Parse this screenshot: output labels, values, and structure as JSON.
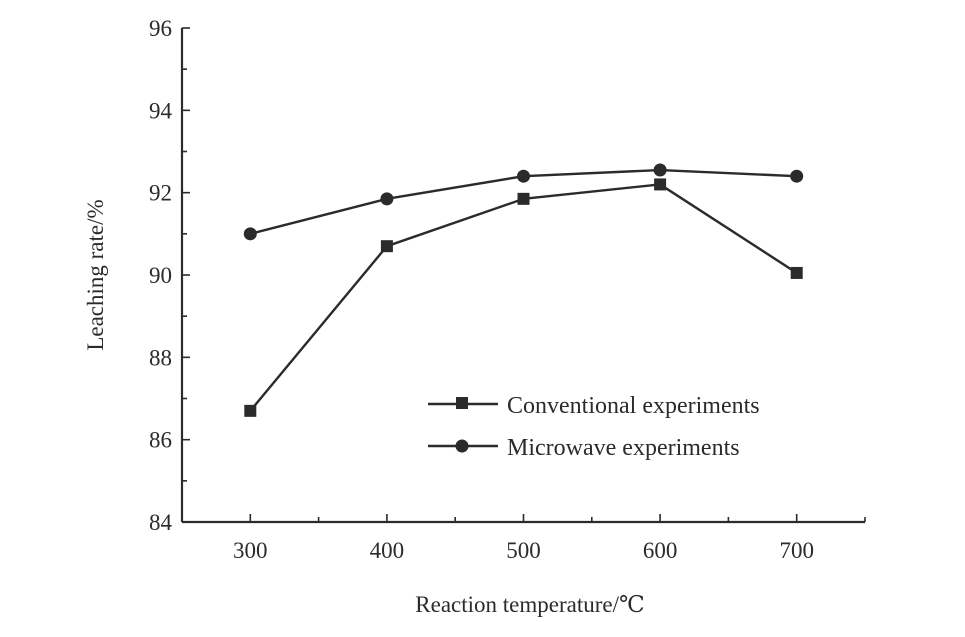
{
  "chart_data": {
    "type": "line",
    "xlabel": "Reaction temperature/℃",
    "ylabel": "Leaching rate/%",
    "xlim": [
      250,
      750
    ],
    "ylim": [
      84,
      96
    ],
    "x_ticks": [
      300,
      400,
      500,
      600,
      700
    ],
    "y_ticks": [
      84,
      86,
      88,
      90,
      92,
      94,
      96
    ],
    "x": [
      300,
      400,
      500,
      600,
      700
    ],
    "series": [
      {
        "name": "Conventional experiments",
        "marker": "square",
        "color": "#2b2b2b",
        "values": [
          86.7,
          90.7,
          91.85,
          92.2,
          90.05
        ]
      },
      {
        "name": "Microwave experiments",
        "marker": "circle",
        "color": "#2b2b2b",
        "values": [
          91.0,
          91.85,
          92.4,
          92.55,
          92.4
        ]
      }
    ],
    "legend_position": "lower-right",
    "grid": false
  }
}
